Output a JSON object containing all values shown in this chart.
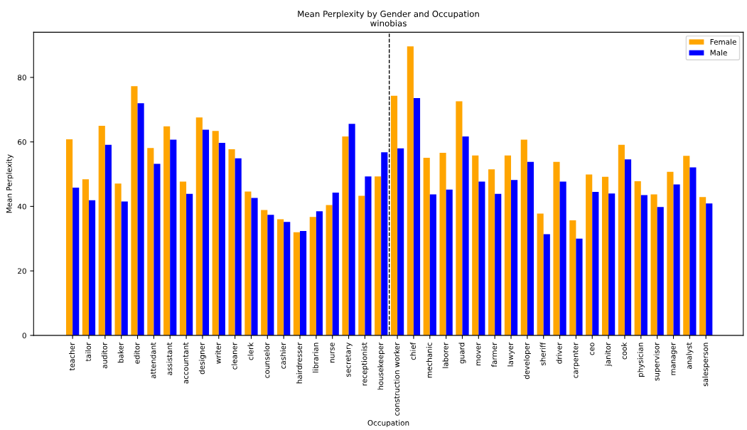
{
  "chart_data": {
    "type": "bar",
    "title": "Mean Perplexity by Gender and Occupation",
    "subtitle": "winobias",
    "xlabel": "Occupation",
    "ylabel": "Mean Perplexity",
    "categories": [
      "teacher",
      "tailor",
      "auditor",
      "baker",
      "editor",
      "attendant",
      "assistant",
      "accountant",
      "designer",
      "writer",
      "cleaner",
      "clerk",
      "counselor",
      "cashier",
      "hairdresser",
      "librarian",
      "nurse",
      "secretary",
      "receptionist",
      "housekeeper",
      "construction worker",
      "chief",
      "mechanic",
      "laborer",
      "guard",
      "mover",
      "farmer",
      "lawyer",
      "developer",
      "sheriff",
      "driver",
      "carpenter",
      "ceo",
      "janitor",
      "cook",
      "physician",
      "supervisor",
      "manager",
      "analyst",
      "salesperson"
    ],
    "series": [
      {
        "name": "Female",
        "color": "#ffa500",
        "values": [
          60.8,
          48.4,
          65.0,
          47.1,
          77.3,
          58.1,
          64.8,
          47.7,
          67.6,
          63.4,
          57.7,
          44.6,
          38.9,
          36.0,
          32.0,
          36.7,
          40.4,
          61.7,
          43.3,
          49.3,
          74.3,
          89.6,
          55.1,
          56.6,
          72.6,
          55.8,
          51.5,
          55.8,
          60.7,
          37.8,
          53.8,
          35.7,
          49.9,
          49.2,
          59.1,
          47.8,
          43.7,
          50.7,
          55.7,
          42.9
        ]
      },
      {
        "name": "Male",
        "color": "#0000ff",
        "values": [
          45.8,
          41.9,
          59.1,
          41.5,
          72.0,
          53.2,
          60.7,
          43.9,
          63.8,
          59.7,
          54.9,
          42.6,
          37.4,
          35.2,
          32.4,
          38.5,
          44.3,
          65.6,
          49.3,
          56.8,
          58.0,
          73.6,
          43.7,
          45.2,
          61.7,
          47.7,
          43.9,
          48.2,
          53.8,
          31.4,
          47.7,
          30.0,
          44.5,
          44.0,
          54.6,
          43.5,
          39.8,
          46.8,
          52.1,
          40.9
        ]
      }
    ],
    "ylim": [
      0,
      94
    ],
    "yticks": [
      0,
      20,
      40,
      60,
      80
    ],
    "grid": false,
    "legend": "top right"
  }
}
